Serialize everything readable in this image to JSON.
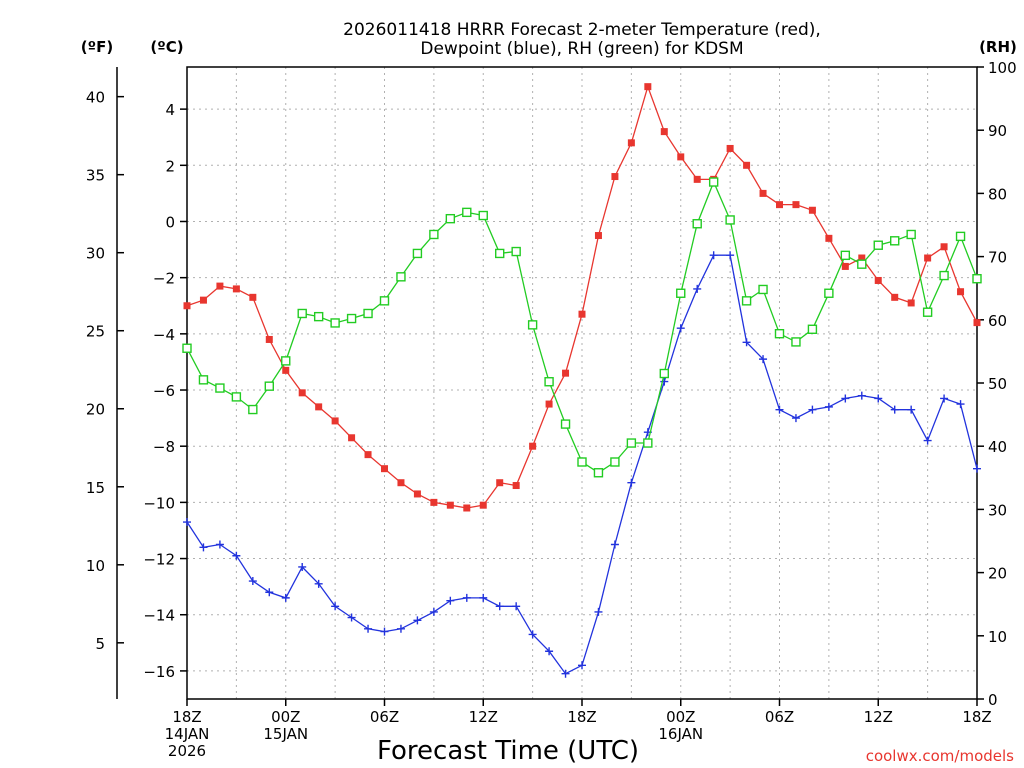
{
  "chart_data": {
    "type": "line",
    "title": "2026011418 HRRR Forecast 2-meter Temperature (red),",
    "subtitle": "Dewpoint (blue), RH (green) for KDSM",
    "xlabel": "Forecast Time (UTC)",
    "credit": "coolwx.com/models",
    "unit_labels": {
      "fahrenheit": "(ºF)",
      "celsius": "(ºC)",
      "rh": "(RH)"
    },
    "x_range_hours": [
      0,
      48
    ],
    "x_ticks": [
      {
        "hour": 0,
        "lines": [
          "18Z",
          "14JAN",
          "2026"
        ]
      },
      {
        "hour": 6,
        "lines": [
          "00Z",
          "15JAN"
        ]
      },
      {
        "hour": 12,
        "lines": [
          "06Z"
        ]
      },
      {
        "hour": 18,
        "lines": [
          "12Z"
        ]
      },
      {
        "hour": 24,
        "lines": [
          "18Z"
        ]
      },
      {
        "hour": 30,
        "lines": [
          "00Z",
          "16JAN"
        ]
      },
      {
        "hour": 36,
        "lines": [
          "06Z"
        ]
      },
      {
        "hour": 42,
        "lines": [
          "12Z"
        ]
      },
      {
        "hour": 48,
        "lines": [
          "18Z"
        ]
      }
    ],
    "axes": {
      "celsius": {
        "range": [
          -17.0,
          5.5
        ],
        "ticks": [
          4,
          2,
          0,
          -2,
          -4,
          -6,
          -8,
          -10,
          -12,
          -14,
          -16
        ],
        "labels": [
          "4",
          "2",
          "0",
          "−2",
          "−4",
          "−6",
          "−8",
          "−10",
          "−12",
          "−14",
          "−16"
        ]
      },
      "fahrenheit": {
        "ticks": [
          40,
          35,
          30,
          25,
          20,
          15,
          10,
          5
        ]
      },
      "rh": {
        "range": [
          0,
          100
        ],
        "ticks": [
          100,
          90,
          80,
          70,
          60,
          50,
          40,
          30,
          20,
          10,
          0
        ]
      }
    },
    "grid": true,
    "series": [
      {
        "name": "Temperature",
        "unit": "C",
        "color": "#e8362f",
        "marker": "filled-square",
        "x": [
          0,
          1,
          2,
          3,
          4,
          5,
          6,
          7,
          8,
          9,
          10,
          11,
          12,
          13,
          14,
          15,
          16,
          17,
          18,
          19,
          20,
          21,
          22,
          23,
          24,
          25,
          26,
          27,
          28,
          29,
          30,
          31,
          32,
          33,
          34,
          35,
          36,
          37,
          38,
          39,
          40,
          41,
          42,
          43,
          44,
          45,
          46,
          47,
          48
        ],
        "values": [
          -3.0,
          -2.8,
          -2.3,
          -2.4,
          -2.7,
          -4.2,
          -5.3,
          -6.1,
          -6.6,
          -7.1,
          -7.7,
          -8.3,
          -8.8,
          -9.3,
          -9.7,
          -10.0,
          -10.1,
          -10.2,
          -10.1,
          -9.3,
          -9.4,
          -8.0,
          -6.5,
          -5.4,
          -3.3,
          -0.5,
          1.6,
          2.8,
          4.8,
          3.2,
          2.3,
          1.5,
          1.5,
          2.6,
          2.0,
          1.0,
          0.6,
          0.6,
          0.4,
          -0.6,
          -1.6,
          -1.3,
          -2.1,
          -2.7,
          -2.9,
          -1.3,
          -0.9,
          -2.5,
          -3.6
        ]
      },
      {
        "name": "Dewpoint",
        "unit": "C",
        "color": "#2233dd",
        "marker": "plus",
        "x": [
          0,
          1,
          2,
          3,
          4,
          5,
          6,
          7,
          8,
          9,
          10,
          11,
          12,
          13,
          14,
          15,
          16,
          17,
          18,
          19,
          20,
          21,
          22,
          23,
          24,
          25,
          26,
          27,
          28,
          29,
          30,
          31,
          32,
          33,
          34,
          35,
          36,
          37,
          38,
          39,
          40,
          41,
          42,
          43,
          44,
          45,
          46,
          47,
          48
        ],
        "values": [
          -10.7,
          -11.6,
          -11.5,
          -11.9,
          -12.8,
          -13.2,
          -13.4,
          -12.3,
          -12.9,
          -13.7,
          -14.1,
          -14.5,
          -14.6,
          -14.5,
          -14.2,
          -13.9,
          -13.5,
          -13.4,
          -13.4,
          -13.7,
          -13.7,
          -14.7,
          -15.3,
          -16.1,
          -15.8,
          -13.9,
          -11.5,
          -9.3,
          -7.5,
          -5.7,
          -3.8,
          -2.4,
          -1.2,
          -1.2,
          -4.3,
          -4.9,
          -6.7,
          -7.0,
          -6.7,
          -6.6,
          -6.3,
          -6.2,
          -6.3,
          -6.7,
          -6.7,
          -7.8,
          -6.3,
          -6.5,
          -8.8
        ]
      },
      {
        "name": "RH",
        "unit": "%",
        "color": "#22cc22",
        "marker": "open-square",
        "x": [
          0,
          1,
          2,
          3,
          4,
          5,
          6,
          7,
          8,
          9,
          10,
          11,
          12,
          13,
          14,
          15,
          16,
          17,
          18,
          19,
          20,
          21,
          22,
          23,
          24,
          25,
          26,
          27,
          28,
          29,
          30,
          31,
          32,
          33,
          34,
          35,
          36,
          37,
          38,
          39,
          40,
          41,
          42,
          43,
          44,
          45,
          46,
          47,
          48
        ],
        "values": [
          55.5,
          50.5,
          49.2,
          47.8,
          45.8,
          49.5,
          53.5,
          61.0,
          60.5,
          59.5,
          60.2,
          61.0,
          63.0,
          66.8,
          70.5,
          73.5,
          76.0,
          77.0,
          76.5,
          70.5,
          70.8,
          59.2,
          50.2,
          43.5,
          37.5,
          35.8,
          37.5,
          40.5,
          40.5,
          51.5,
          64.2,
          75.2,
          81.8,
          75.8,
          63.0,
          64.8,
          57.8,
          56.5,
          58.5,
          64.2,
          70.2,
          68.8,
          71.8,
          72.5,
          73.5,
          61.2,
          67.0,
          73.2,
          66.5
        ]
      }
    ]
  }
}
